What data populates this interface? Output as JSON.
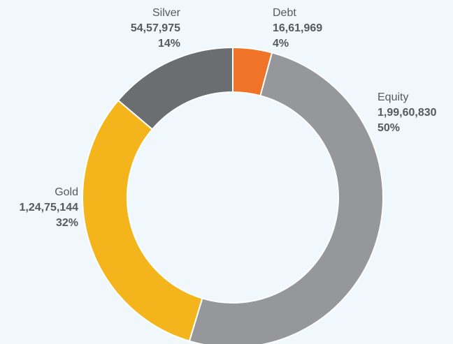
{
  "chart_data": {
    "type": "donut",
    "categories": [
      "Debt",
      "Equity",
      "Gold",
      "Silver"
    ],
    "values": [
      1661969,
      19960830,
      12475144,
      5457975
    ],
    "value_labels": [
      "16,61,969",
      "1,99,60,830",
      "1,24,75,144",
      "54,57,975"
    ],
    "percent_labels": [
      "4%",
      "50%",
      "32%",
      "14%"
    ],
    "colors": [
      "#f07427",
      "#96979b",
      "#f3b51b",
      "#6b6e71"
    ]
  }
}
